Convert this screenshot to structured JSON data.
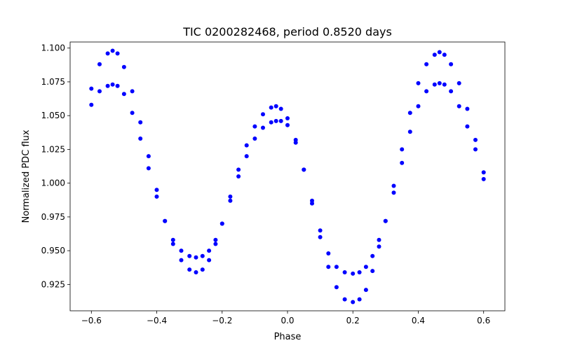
{
  "chart_data": {
    "type": "scatter",
    "title": "TIC 0200282468, period 0.8520 days",
    "xlabel": "Phase",
    "ylabel": "Normalized PDC flux",
    "xlim": [
      -0.665,
      0.665
    ],
    "ylim": [
      0.9055,
      1.1045
    ],
    "xticks": [
      -0.6,
      -0.4,
      -0.2,
      0.0,
      0.2,
      0.4,
      0.6
    ],
    "xtick_labels": [
      "−0.6",
      "−0.4",
      "−0.2",
      "0.0",
      "0.2",
      "0.4",
      "0.6"
    ],
    "yticks": [
      0.925,
      0.95,
      0.975,
      1.0,
      1.025,
      1.05,
      1.075,
      1.1
    ],
    "ytick_labels": [
      "0.925",
      "0.950",
      "0.975",
      "1.000",
      "1.025",
      "1.050",
      "1.075",
      "1.100"
    ],
    "grid": false,
    "marker_color": "#0000ff",
    "series": [
      {
        "x": [
          -0.6,
          -0.575,
          -0.55,
          -0.535,
          -0.52,
          -0.5,
          -0.475,
          -0.45,
          -0.425,
          -0.4,
          -0.375,
          -0.35,
          -0.325,
          -0.3,
          -0.28,
          -0.26,
          -0.24,
          -0.22,
          -0.2,
          -0.175,
          -0.15,
          -0.125,
          -0.1,
          -0.075,
          -0.05,
          -0.035,
          -0.02,
          0.0,
          0.025,
          0.05,
          0.075,
          0.1,
          0.125,
          0.15,
          0.175,
          0.2,
          0.22,
          0.24,
          0.26,
          0.28,
          0.3,
          0.325,
          0.35,
          0.375,
          0.4,
          0.425,
          0.45,
          0.465,
          0.48,
          0.5,
          0.525,
          0.55,
          0.575,
          0.6
        ],
        "y": [
          1.07,
          1.088,
          1.096,
          1.098,
          1.096,
          1.086,
          1.068,
          1.045,
          1.02,
          0.995,
          0.972,
          0.955,
          0.943,
          0.936,
          0.934,
          0.936,
          0.943,
          0.955,
          0.97,
          0.99,
          1.01,
          1.028,
          1.042,
          1.051,
          1.056,
          1.057,
          1.055,
          1.048,
          1.032,
          1.01,
          0.985,
          0.96,
          0.938,
          0.923,
          0.914,
          0.912,
          0.914,
          0.921,
          0.935,
          0.953,
          0.972,
          0.998,
          1.025,
          1.052,
          1.074,
          1.088,
          1.095,
          1.097,
          1.095,
          1.088,
          1.074,
          1.055,
          1.032,
          1.008
        ]
      },
      {
        "x": [
          -0.6,
          -0.575,
          -0.55,
          -0.535,
          -0.52,
          -0.5,
          -0.475,
          -0.45,
          -0.425,
          -0.4,
          -0.375,
          -0.35,
          -0.325,
          -0.3,
          -0.28,
          -0.26,
          -0.24,
          -0.22,
          -0.2,
          -0.175,
          -0.15,
          -0.125,
          -0.1,
          -0.075,
          -0.05,
          -0.035,
          -0.02,
          0.0,
          0.025,
          0.05,
          0.075,
          0.1,
          0.125,
          0.15,
          0.175,
          0.2,
          0.22,
          0.24,
          0.26,
          0.28,
          0.3,
          0.325,
          0.35,
          0.375,
          0.4,
          0.425,
          0.45,
          0.465,
          0.48,
          0.5,
          0.525,
          0.55,
          0.575,
          0.6
        ],
        "y": [
          1.058,
          1.068,
          1.072,
          1.073,
          1.072,
          1.066,
          1.052,
          1.033,
          1.011,
          0.99,
          0.972,
          0.958,
          0.95,
          0.946,
          0.945,
          0.946,
          0.95,
          0.958,
          0.97,
          0.987,
          1.005,
          1.02,
          1.033,
          1.041,
          1.045,
          1.046,
          1.046,
          1.043,
          1.03,
          1.01,
          0.987,
          0.965,
          0.948,
          0.938,
          0.934,
          0.933,
          0.934,
          0.938,
          0.946,
          0.958,
          0.972,
          0.993,
          1.015,
          1.038,
          1.057,
          1.068,
          1.073,
          1.074,
          1.073,
          1.068,
          1.057,
          1.042,
          1.025,
          1.003
        ]
      }
    ]
  }
}
